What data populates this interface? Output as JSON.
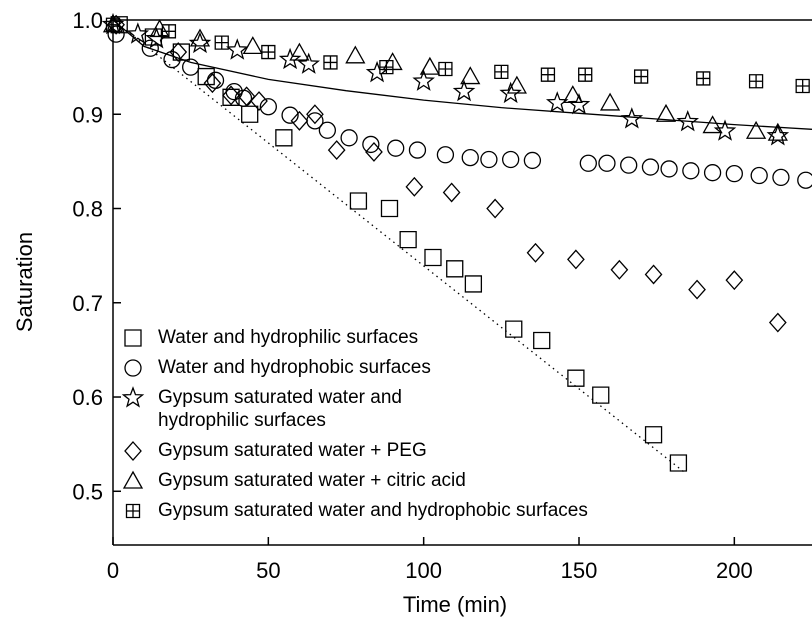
{
  "chart_data": {
    "type": "scatter",
    "x_label": "Time (min)",
    "y_label": "Saturation",
    "xlim": [
      0,
      225
    ],
    "ylim": [
      0.443,
      1.0
    ],
    "xticks": [
      0,
      50,
      100,
      150,
      200
    ],
    "yticks": [
      0.5,
      0.6,
      0.7,
      0.8,
      0.9,
      {
        "value": 1.0,
        "label": "1.0"
      }
    ],
    "legend": "lower left",
    "color": "#000000",
    "series": [
      {
        "name": "Water and hydrophilic surfaces",
        "marker": "square",
        "x": [
          2,
          13,
          22,
          30,
          38,
          44,
          55,
          79,
          89,
          95,
          103,
          110,
          116,
          129,
          138,
          149,
          157,
          174,
          182
        ],
        "values": [
          0.995,
          0.982,
          0.966,
          0.94,
          0.918,
          0.9,
          0.875,
          0.808,
          0.8,
          0.767,
          0.748,
          0.736,
          0.72,
          0.672,
          0.66,
          0.62,
          0.602,
          0.56,
          0.53
        ]
      },
      {
        "name": "Water and hydrophobic surfaces",
        "marker": "circle",
        "x": [
          1,
          12,
          19,
          25,
          33,
          39,
          42,
          50,
          57,
          65,
          69,
          76,
          83,
          91,
          98,
          107,
          115,
          121,
          128,
          135,
          153,
          159,
          166,
          173,
          179,
          186,
          193,
          200,
          208,
          215,
          223
        ],
        "values": [
          0.985,
          0.97,
          0.958,
          0.95,
          0.936,
          0.924,
          0.917,
          0.908,
          0.899,
          0.893,
          0.883,
          0.875,
          0.868,
          0.864,
          0.862,
          0.857,
          0.854,
          0.852,
          0.852,
          0.851,
          0.848,
          0.848,
          0.846,
          0.844,
          0.842,
          0.84,
          0.838,
          0.837,
          0.835,
          0.833,
          0.83
        ]
      },
      {
        "name": "Gypsum saturated water and\nhydrophilic surfaces",
        "marker": "star",
        "x": [
          0,
          8,
          14,
          28,
          40,
          57,
          63,
          85,
          100,
          113,
          128,
          143,
          150,
          167,
          185,
          197,
          214
        ],
        "values": [
          0.995,
          0.985,
          0.98,
          0.975,
          0.968,
          0.958,
          0.953,
          0.944,
          0.935,
          0.924,
          0.922,
          0.912,
          0.91,
          0.895,
          0.892,
          0.882,
          0.877
        ]
      },
      {
        "name": "Gypsum saturated water + PEG",
        "marker": "diamond",
        "x": [
          1,
          21,
          32,
          38,
          43,
          47,
          60,
          65,
          72,
          84,
          97,
          109,
          123,
          136,
          149,
          163,
          174,
          188,
          200,
          214
        ],
        "values": [
          0.995,
          0.966,
          0.933,
          0.92,
          0.919,
          0.914,
          0.893,
          0.9,
          0.862,
          0.86,
          0.823,
          0.817,
          0.8,
          0.753,
          0.746,
          0.735,
          0.73,
          0.714,
          0.724,
          0.679
        ]
      },
      {
        "name": "Gypsum saturated water + citric acid",
        "marker": "triangle",
        "x": [
          0,
          15,
          28,
          45,
          60,
          78,
          90,
          102,
          115,
          130,
          148,
          160,
          178,
          193,
          207,
          214
        ],
        "values": [
          0.995,
          0.99,
          0.98,
          0.972,
          0.965,
          0.962,
          0.955,
          0.95,
          0.94,
          0.93,
          0.92,
          0.912,
          0.9,
          0.888,
          0.882,
          0.88
        ]
      },
      {
        "name": "Gypsum saturated water and hydrophobic surfaces",
        "marker": "boxplus",
        "x": [
          0,
          18,
          35,
          50,
          70,
          88,
          107,
          125,
          140,
          152,
          170,
          190,
          207,
          222
        ],
        "values": [
          0.995,
          0.988,
          0.976,
          0.966,
          0.955,
          0.95,
          0.948,
          0.945,
          0.942,
          0.942,
          0.94,
          0.938,
          0.935,
          0.93
        ]
      }
    ],
    "fits": [
      {
        "style": "solid",
        "x": [
          0,
          10,
          25,
          50,
          75,
          100,
          125,
          150,
          175,
          200,
          225
        ],
        "values": [
          1.0,
          0.972,
          0.955,
          0.937,
          0.925,
          0.915,
          0.907,
          0.901,
          0.895,
          0.889,
          0.884
        ]
      },
      {
        "style": "dotted",
        "x": [
          0,
          184
        ],
        "values": [
          1.0,
          0.52
        ]
      }
    ]
  }
}
